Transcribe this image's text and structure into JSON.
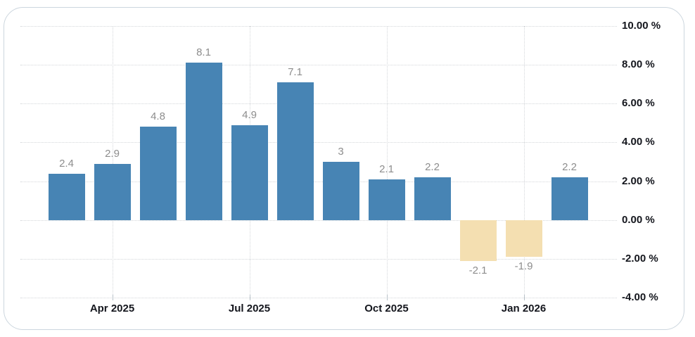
{
  "page": {
    "background": "#ffffff"
  },
  "card": {
    "background": "#ffffff",
    "border_color": "#ccd6de"
  },
  "chart_data": {
    "type": "bar",
    "title": "",
    "unit": "%",
    "values": [
      2.4,
      2.9,
      4.8,
      8.1,
      4.9,
      7.1,
      3,
      2.1,
      2.2,
      -2.1,
      -1.9,
      2.2
    ],
    "bar_labels": [
      "2.4",
      "2.9",
      "4.8",
      "8.1",
      "4.9",
      "7.1",
      "3",
      "2.1",
      "2.2",
      "-2.1",
      "-1.9",
      "2.2"
    ],
    "x_ticks": [
      {
        "label": "Apr 2025",
        "bar_index": 1
      },
      {
        "label": "Jul 2025",
        "bar_index": 4
      },
      {
        "label": "Oct 2025",
        "bar_index": 7
      },
      {
        "label": "Jan 2026",
        "bar_index": 10
      }
    ],
    "y_ticks": [
      {
        "value": 10,
        "label": "10.00 %"
      },
      {
        "value": 8,
        "label": "8.00 %"
      },
      {
        "value": 6,
        "label": "6.00 %"
      },
      {
        "value": 4,
        "label": "4.00 %"
      },
      {
        "value": 2,
        "label": "2.00 %"
      },
      {
        "value": 0,
        "label": "0.00 %"
      },
      {
        "value": -2,
        "label": "-2.00 %"
      },
      {
        "value": -4,
        "label": "-4.00 %"
      }
    ],
    "ylim": [
      -4,
      10
    ],
    "grid": "dotted",
    "legend": "none",
    "colors": {
      "positive_bar": "#4784b4",
      "negative_bar": "#f4dfb1",
      "gridline": "#d4d7da",
      "value_label": "#8d8d8d",
      "axis_label": "#14161d"
    }
  }
}
